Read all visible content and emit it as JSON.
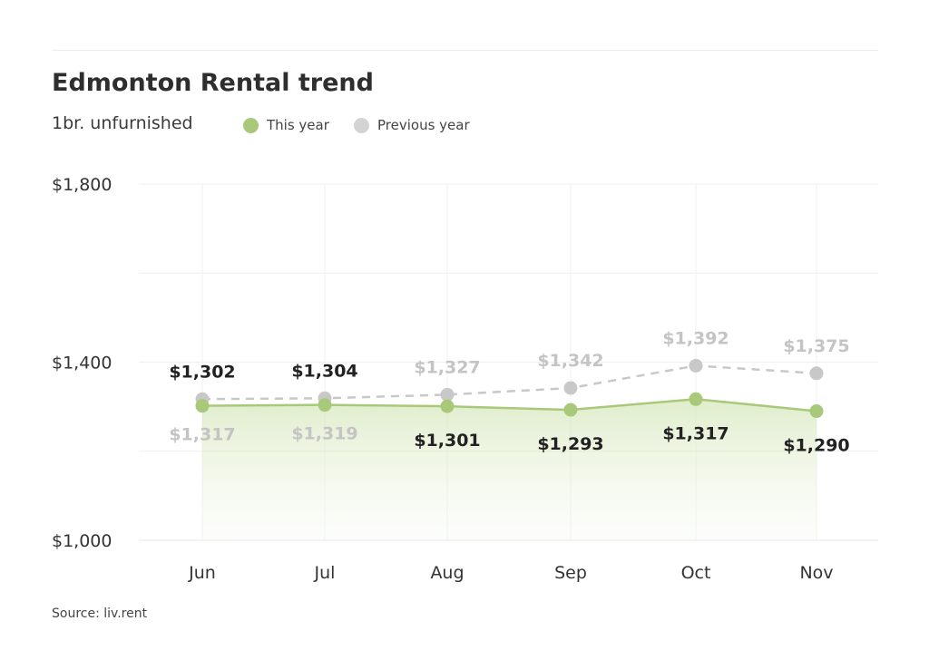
{
  "chart_data": {
    "type": "line",
    "title": "Edmonton Rental trend",
    "subtitle": "1br. unfurnished",
    "categories": [
      "Jun",
      "Jul",
      "Aug",
      "Sep",
      "Oct",
      "Nov"
    ],
    "series": [
      {
        "name": "This year",
        "values": [
          1302,
          1304,
          1301,
          1293,
          1317,
          1290
        ],
        "labels": [
          "$1,302",
          "$1,304",
          "$1,301",
          "$1,293",
          "$1,317",
          "$1,290"
        ],
        "color": "#a9c97a",
        "style": "solid-area"
      },
      {
        "name": "Previous year",
        "values": [
          1317,
          1319,
          1327,
          1342,
          1392,
          1375
        ],
        "labels": [
          "$1,317",
          "$1,319",
          "$1,327",
          "$1,342",
          "$1,392",
          "$1,375"
        ],
        "color": "#c8c8c8",
        "style": "dashed"
      }
    ],
    "yticks": [
      1000,
      1400,
      1800
    ],
    "ytick_labels": [
      "$1,000",
      "$1,400",
      "$1,800"
    ],
    "ylim": [
      1000,
      1800
    ],
    "grid": true,
    "legend": "top-left"
  },
  "source": "Source: liv.rent"
}
